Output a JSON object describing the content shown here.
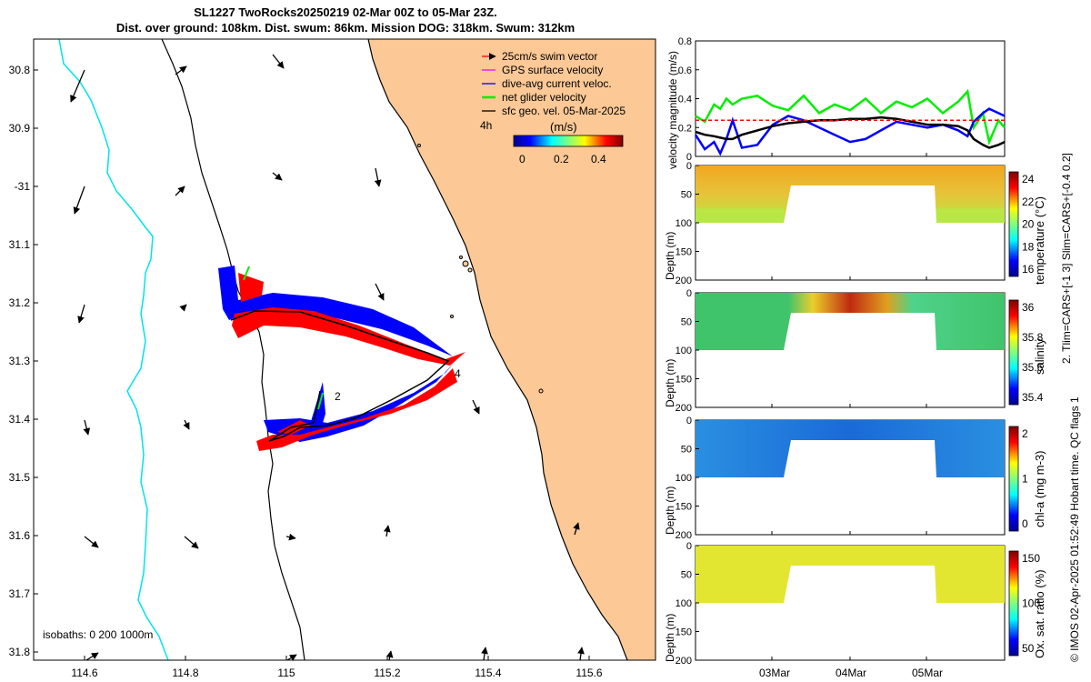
{
  "title": {
    "line1": "SL1227 TwoRocks20250219 02-Mar 00Z to 05-Mar 23Z.",
    "line2": "Dist. over ground: 108km. Dist. swum: 86km. Mission DOG: 318km. Swum: 312km"
  },
  "colors": {
    "land": "#fbc896",
    "swim": "#ff0000",
    "gps": "#ff00ff",
    "dive": "#0000ff",
    "net": "#00ee00",
    "geo": "#000000",
    "isobath_200": "#00e5e5"
  },
  "map": {
    "lat_ticks": [
      "30.8",
      "30.9",
      "-31",
      "31.1",
      "31.2",
      "31.3",
      "31.4",
      "31.5",
      "31.6",
      "31.7",
      "31.8"
    ],
    "lon_ticks": [
      "114.6",
      "114.8",
      "115",
      "115.2",
      "115.4",
      "115.6"
    ],
    "legend": [
      {
        "label": "25cm/s swim vector",
        "color": "#ff0000"
      },
      {
        "label": "GPS surface velocity",
        "color": "#ff00ff"
      },
      {
        "label": "dive-avg current veloc.",
        "color": "#0000ff"
      },
      {
        "label": "net glider velocity",
        "color": "#00ee00"
      },
      {
        "label": "sfc geo. vel. 05-Mar-2025",
        "color": "#000000"
      }
    ],
    "duration_label": "4h",
    "colorbar": {
      "title": "(m/s)",
      "ticks": [
        "0",
        "0.2",
        "0.4"
      ]
    },
    "isobath_label": "isobaths: 0   200  1000m",
    "markers": [
      {
        "label": "2"
      },
      {
        "label": "4"
      }
    ]
  },
  "chart_data": [
    {
      "type": "line",
      "ylabel": "velocity magnitude (m/s)",
      "ylim": [
        0,
        0.8
      ],
      "yticks": [
        "0",
        "0.2",
        "0.4",
        "0.6",
        "0.8"
      ],
      "x": [
        0,
        0.03,
        0.06,
        0.08,
        0.1,
        0.12,
        0.15,
        0.2,
        0.25,
        0.3,
        0.35,
        0.4,
        0.45,
        0.5,
        0.55,
        0.6,
        0.65,
        0.7,
        0.75,
        0.8,
        0.85,
        0.88,
        0.9,
        0.93,
        0.95,
        0.98,
        1.0
      ],
      "series": [
        {
          "name": "net glider velocity",
          "color": "#00ee00",
          "values": [
            0.28,
            0.24,
            0.36,
            0.33,
            0.4,
            0.36,
            0.4,
            0.42,
            0.35,
            0.32,
            0.42,
            0.3,
            0.36,
            0.32,
            0.4,
            0.3,
            0.38,
            0.34,
            0.4,
            0.3,
            0.38,
            0.45,
            0.2,
            0.3,
            0.1,
            0.25,
            0.2
          ]
        },
        {
          "name": "dive-avg current veloc.",
          "color": "#0000ff",
          "values": [
            0.15,
            0.05,
            0.1,
            0.02,
            0.12,
            0.25,
            0.06,
            0.08,
            0.22,
            0.28,
            0.25,
            0.2,
            0.15,
            0.1,
            0.12,
            0.18,
            0.24,
            0.22,
            0.2,
            0.22,
            0.18,
            0.14,
            0.24,
            0.3,
            0.33,
            0.3,
            0.28
          ]
        },
        {
          "name": "sfc geo. vel. 05-Mar-2025",
          "color": "#000000",
          "values": [
            0.17,
            0.15,
            0.14,
            0.13,
            0.12,
            0.12,
            0.15,
            0.18,
            0.21,
            0.23,
            0.24,
            0.25,
            0.25,
            0.26,
            0.26,
            0.27,
            0.26,
            0.24,
            0.22,
            0.22,
            0.21,
            0.18,
            0.12,
            0.08,
            0.06,
            0.08,
            0.1
          ]
        },
        {
          "name": "25cm/s swim vector",
          "color": "#ff0000",
          "values": [
            0.25,
            0.25,
            0.25,
            0.25,
            0.25,
            0.25,
            0.25,
            0.25,
            0.25,
            0.25,
            0.25,
            0.25,
            0.25,
            0.25,
            0.25,
            0.25,
            0.25,
            0.25,
            0.25,
            0.25,
            0.25,
            0.25,
            0.25,
            0.25,
            0.25,
            0.25,
            0.25
          ]
        }
      ]
    },
    {
      "type": "heatmap",
      "ylabel": "Depth (m)",
      "cbar_label": "temperature (°C)",
      "ylim": [
        0,
        200
      ],
      "yticks": [
        "0",
        "50",
        "100",
        "150",
        "200"
      ],
      "cbar_ticks": [
        "24",
        "22",
        "20",
        "18",
        "16"
      ]
    },
    {
      "type": "heatmap",
      "ylabel": "Depth (m)",
      "cbar_label": "salinity",
      "ylim": [
        0,
        200
      ],
      "yticks": [
        "0",
        "50",
        "100",
        "150",
        "200"
      ],
      "cbar_ticks": [
        "36",
        "35.8",
        "35.6",
        "35.4"
      ]
    },
    {
      "type": "heatmap",
      "ylabel": "Depth (m)",
      "cbar_label": "chl-a (mg m-3)",
      "ylim": [
        0,
        200
      ],
      "yticks": [
        "0",
        "50",
        "100",
        "150",
        "200"
      ],
      "cbar_ticks": [
        "2",
        "1",
        "0"
      ]
    },
    {
      "type": "heatmap",
      "ylabel": "Depth (m)",
      "cbar_label": "Ox. sat. ratio (%)",
      "ylim": [
        0,
        200
      ],
      "yticks": [
        "0",
        "50",
        "100",
        "150",
        "200"
      ],
      "cbar_ticks": [
        "150",
        "100",
        "50"
      ],
      "xticks": [
        "03Mar",
        "04Mar",
        "05Mar"
      ]
    }
  ],
  "side_note_1": "2. Tlim=CARS+[-1 3] Slim=CARS+[-0.4 0.2]",
  "side_note_2": "© IMOS 02-Apr-2025 01:52:49 Hobart time. QC flags 1"
}
